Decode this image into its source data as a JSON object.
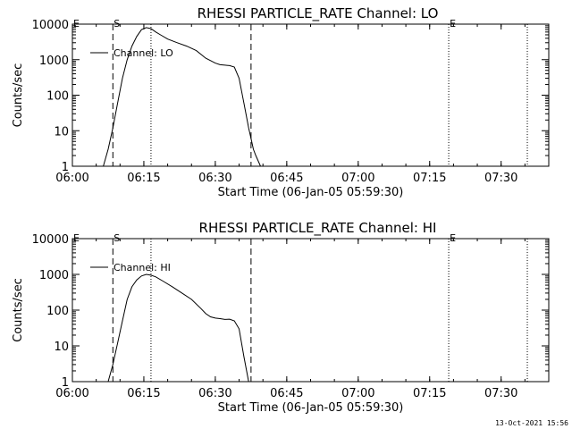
{
  "footer": {
    "timestamp": "13-Oct-2021 15:56"
  },
  "chart_data": [
    {
      "type": "line",
      "title": "RHESSI PARTICLE_RATE Channel: LO",
      "xlabel": "Start Time (06-Jan-05 05:59:30)",
      "ylabel": "Counts/sec",
      "yscale": "log",
      "ylim": [
        1,
        10000
      ],
      "yticks": [
        "1",
        "10",
        "100",
        "1000",
        "10000"
      ],
      "xlim": [
        "06:00",
        "07:40"
      ],
      "xticks": [
        "06:00",
        "06:15",
        "06:30",
        "06:45",
        "07:00",
        "07:15",
        "07:30"
      ],
      "legend": {
        "label": "Channel: LO",
        "placement": "top-left"
      },
      "markers": [
        {
          "label": "S",
          "time": "06:08.5",
          "style": "dashed"
        },
        {
          "label": "",
          "time": "06:16.5",
          "style": "dotted"
        },
        {
          "label": "",
          "time": "06:37.5",
          "style": "dashed"
        },
        {
          "label": "E",
          "time": "07:19",
          "style": "dotted"
        },
        {
          "label": "",
          "time": "07:35.5",
          "style": "dotted"
        }
      ],
      "corner_marks": [
        "E"
      ],
      "series": [
        {
          "x": [
            "06:06.5",
            "06:07.5",
            "06:08.5",
            "06:09.5",
            "06:10.5",
            "06:11.5",
            "06:12.5",
            "06:13.5",
            "06:14.5",
            "06:15.5",
            "06:16.5",
            "06:17.5",
            "06:18.5",
            "06:20",
            "06:22",
            "06:24",
            "06:26",
            "06:28",
            "06:30",
            "06:31",
            "06:32",
            "06:33",
            "06:34",
            "06:35",
            "06:36",
            "06:37",
            "06:37.5",
            "06:38",
            "06:38.5",
            "06:39.5"
          ],
          "values": [
            1,
            3,
            12,
            60,
            300,
            1000,
            2400,
            4500,
            7000,
            8000,
            7500,
            6000,
            5000,
            3800,
            3000,
            2400,
            1800,
            1100,
            800,
            720,
            700,
            680,
            620,
            300,
            60,
            12,
            6,
            3,
            2,
            1
          ]
        }
      ]
    },
    {
      "type": "line",
      "title": "RHESSI PARTICLE_RATE Channel: HI",
      "xlabel": "Start Time (06-Jan-05 05:59:30)",
      "ylabel": "Counts/sec",
      "yscale": "log",
      "ylim": [
        1,
        10000
      ],
      "yticks": [
        "1",
        "10",
        "100",
        "1000",
        "10000"
      ],
      "xlim": [
        "06:00",
        "07:40"
      ],
      "xticks": [
        "06:00",
        "06:15",
        "06:30",
        "06:45",
        "07:00",
        "07:15",
        "07:30"
      ],
      "legend": {
        "label": "Channel: HI",
        "placement": "top-left"
      },
      "markers": [
        {
          "label": "S",
          "time": "06:08.5",
          "style": "dashed"
        },
        {
          "label": "",
          "time": "06:16.5",
          "style": "dotted"
        },
        {
          "label": "",
          "time": "06:37.5",
          "style": "dashed"
        },
        {
          "label": "E",
          "time": "07:19",
          "style": "dotted"
        },
        {
          "label": "",
          "time": "07:35.5",
          "style": "dotted"
        }
      ],
      "corner_marks": [
        "E"
      ],
      "series": [
        {
          "x": [
            "06:07.5",
            "06:08.5",
            "06:09.5",
            "06:10.5",
            "06:11.5",
            "06:12.5",
            "06:13.5",
            "06:14.5",
            "06:15.5",
            "06:16.5",
            "06:17.5",
            "06:19",
            "06:21",
            "06:23",
            "06:25",
            "06:27",
            "06:28",
            "06:29",
            "06:30",
            "06:31",
            "06:32",
            "06:33",
            "06:34",
            "06:35",
            "06:36",
            "06:37"
          ],
          "values": [
            1,
            3,
            12,
            50,
            200,
            450,
            700,
            900,
            1000,
            950,
            850,
            650,
            450,
            300,
            200,
            110,
            80,
            65,
            60,
            58,
            55,
            56,
            50,
            30,
            5,
            1
          ]
        }
      ]
    }
  ]
}
